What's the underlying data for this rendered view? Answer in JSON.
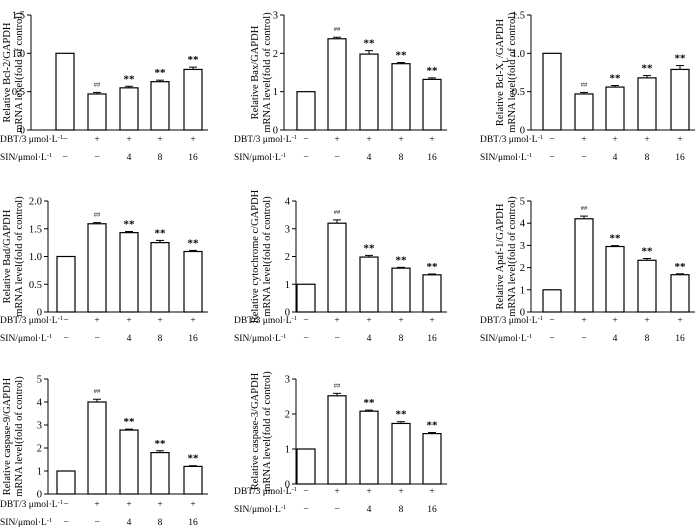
{
  "panels": [
    {
      "id": "bcl2",
      "ylabel_line1": "Relative Bcl-2/GAPDH",
      "ylabel_line2": "mRNA level(fold of control)",
      "chart_data": {
        "type": "bar",
        "categories": [
          "control",
          "DBT",
          "DBT+SIN4",
          "DBT+SIN8",
          "DBT+SIN16"
        ],
        "values": [
          1.0,
          0.47,
          0.55,
          0.63,
          0.79
        ],
        "errors": [
          0,
          0.02,
          0.02,
          0.02,
          0.03
        ],
        "significance": [
          "",
          "##",
          "**",
          "**",
          "**"
        ],
        "ylim": [
          0,
          1.5
        ],
        "yticks": [
          0,
          0.5,
          1.0,
          1.5
        ],
        "ytick_labels": [
          "0",
          "0.5",
          "1.0",
          "1.5"
        ]
      }
    },
    {
      "id": "bax",
      "ylabel_line1": "Relative Bax/GAPDH",
      "ylabel_line2": "mRNA level(fold of control)",
      "chart_data": {
        "type": "bar",
        "categories": [
          "control",
          "DBT",
          "DBT+SIN4",
          "DBT+SIN8",
          "DBT+SIN16"
        ],
        "values": [
          1.0,
          2.38,
          1.98,
          1.73,
          1.32
        ],
        "errors": [
          0,
          0.04,
          0.09,
          0.03,
          0.04
        ],
        "significance": [
          "",
          "##",
          "**",
          "**",
          "**"
        ],
        "ylim": [
          0,
          3
        ],
        "yticks": [
          0,
          1,
          2,
          3
        ],
        "ytick_labels": [
          "0",
          "1",
          "2",
          "3"
        ]
      }
    },
    {
      "id": "bclxl",
      "ylabel_line1": "Relative Bcl-X",
      "ylabel_sub": "L",
      "ylabel_line1_tail": "/GAPDH",
      "ylabel_line2": "mRNA level(fold of control)",
      "chart_data": {
        "type": "bar",
        "categories": [
          "control",
          "DBT",
          "DBT+SIN4",
          "DBT+SIN8",
          "DBT+SIN16"
        ],
        "values": [
          1.0,
          0.47,
          0.56,
          0.68,
          0.79
        ],
        "errors": [
          0,
          0.02,
          0.02,
          0.03,
          0.05
        ],
        "significance": [
          "",
          "##",
          "**",
          "**",
          "**"
        ],
        "ylim": [
          0,
          1.5
        ],
        "yticks": [
          0,
          0.5,
          1.0,
          1.5
        ],
        "ytick_labels": [
          "0",
          "0.5",
          "1.0",
          "1.5"
        ]
      }
    },
    {
      "id": "bad",
      "ylabel_line1": "Relative Bad/GAPDH",
      "ylabel_line2": "mRNA level(fold of control)",
      "chart_data": {
        "type": "bar",
        "categories": [
          "control",
          "DBT",
          "DBT+SIN4",
          "DBT+SIN8",
          "DBT+SIN16"
        ],
        "values": [
          1.0,
          1.59,
          1.43,
          1.25,
          1.09
        ],
        "errors": [
          0,
          0.02,
          0.02,
          0.04,
          0.02
        ],
        "significance": [
          "",
          "##",
          "**",
          "**",
          "**"
        ],
        "ylim": [
          0,
          2.0
        ],
        "yticks": [
          0,
          0.5,
          1.0,
          1.5,
          2.0
        ],
        "ytick_labels": [
          "0",
          "0.5",
          "1.0",
          "1.5",
          "2.0"
        ]
      }
    },
    {
      "id": "cytc",
      "ylabel_line1": "Relative cytochrome c/GAPDH",
      "ylabel_line2": "mRNA level(fold of control)",
      "chart_data": {
        "type": "bar",
        "categories": [
          "control",
          "DBT",
          "DBT+SIN4",
          "DBT+SIN8",
          "DBT+SIN16"
        ],
        "values": [
          1.0,
          3.2,
          1.98,
          1.58,
          1.34
        ],
        "errors": [
          0,
          0.12,
          0.06,
          0.03,
          0.03
        ],
        "significance": [
          "",
          "##",
          "**",
          "**",
          "**"
        ],
        "ylim": [
          0,
          4
        ],
        "yticks": [
          0,
          1,
          2,
          3,
          4
        ],
        "ytick_labels": [
          "0",
          "1",
          "2",
          "3",
          "4"
        ]
      }
    },
    {
      "id": "apaf1",
      "ylabel_line1": "Relative Apaf-1/GAPDH",
      "ylabel_line2": "mRNA level(fold of control)",
      "chart_data": {
        "type": "bar",
        "categories": [
          "control",
          "DBT",
          "DBT+SIN4",
          "DBT+SIN8",
          "DBT+SIN16"
        ],
        "values": [
          1.0,
          4.2,
          2.95,
          2.33,
          1.68
        ],
        "errors": [
          0,
          0.12,
          0.04,
          0.08,
          0.04
        ],
        "significance": [
          "",
          "##",
          "**",
          "**",
          "**"
        ],
        "ylim": [
          0,
          5
        ],
        "yticks": [
          0,
          1,
          2,
          3,
          4,
          5
        ],
        "ytick_labels": [
          "0",
          "1",
          "2",
          "3",
          "4",
          "5"
        ]
      }
    },
    {
      "id": "casp9",
      "ylabel_line1": "Relative caspase-9/GAPDH",
      "ylabel_line2": "mRNA level(fold of control)",
      "chart_data": {
        "type": "bar",
        "categories": [
          "control",
          "DBT",
          "DBT+SIN4",
          "DBT+SIN8",
          "DBT+SIN16"
        ],
        "values": [
          1.0,
          4.0,
          2.78,
          1.8,
          1.2
        ],
        "errors": [
          0,
          0.12,
          0.04,
          0.08,
          0.03
        ],
        "significance": [
          "",
          "##",
          "**",
          "**",
          "**"
        ],
        "ylim": [
          0,
          5
        ],
        "yticks": [
          0,
          1,
          2,
          3,
          4,
          5
        ],
        "ytick_labels": [
          "0",
          "1",
          "2",
          "3",
          "4",
          "5"
        ]
      }
    },
    {
      "id": "casp3",
      "ylabel_line1": "Relative caspase-3/GAPDH",
      "ylabel_line2": "mRNA level(fold of control)",
      "chart_data": {
        "type": "bar",
        "categories": [
          "control",
          "DBT",
          "DBT+SIN4",
          "DBT+SIN8",
          "DBT+SIN16"
        ],
        "values": [
          1.0,
          2.52,
          2.08,
          1.73,
          1.44
        ],
        "errors": [
          0,
          0.07,
          0.03,
          0.05,
          0.03
        ],
        "significance": [
          "",
          "##",
          "**",
          "**",
          "**"
        ],
        "ylim": [
          0,
          3
        ],
        "yticks": [
          0,
          1,
          2,
          3
        ],
        "ytick_labels": [
          "0",
          "1",
          "2",
          "3"
        ]
      }
    }
  ],
  "condition_rows": {
    "dbt_label": "DBT/3 μmol·L",
    "dbt_exp": "-1",
    "sin_label": "SIN/μmol·L",
    "sin_exp": "-1",
    "dbt_values": [
      "−",
      "+",
      "+",
      "+",
      "+"
    ],
    "sin_values": [
      "−",
      "−",
      "4",
      "8",
      "16"
    ]
  }
}
